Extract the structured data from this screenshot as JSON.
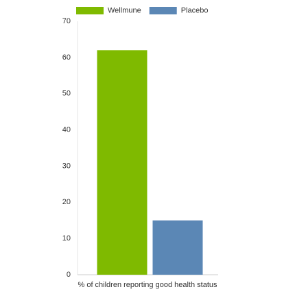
{
  "chart_data": {
    "type": "bar",
    "categories": [
      "% of children reporting good health status"
    ],
    "series": [
      {
        "name": "Wellmune",
        "color": "#7fba00",
        "values": [
          62
        ]
      },
      {
        "name": "Placebo",
        "color": "#5b87b5",
        "values": [
          15
        ]
      }
    ],
    "ylim": [
      0,
      70
    ],
    "yticks": [
      0,
      10,
      20,
      30,
      40,
      50,
      60,
      70
    ],
    "grid": false,
    "legend": "top"
  }
}
